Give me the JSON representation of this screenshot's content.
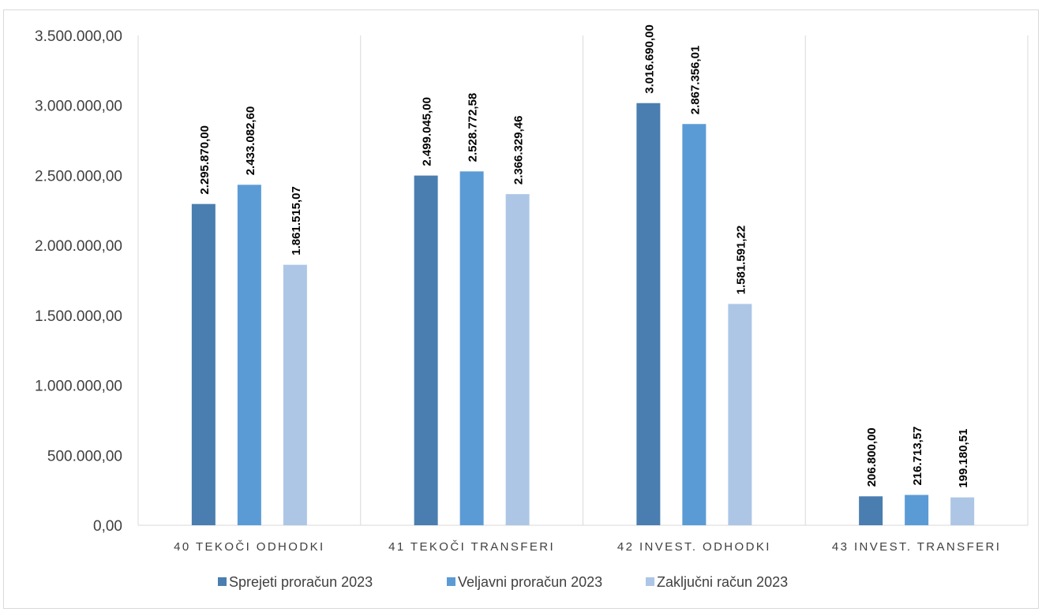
{
  "chart_data": {
    "type": "bar",
    "categories": [
      "40 TEKOČI ODHODKI",
      "41 TEKOČI TRANSFERI",
      "42 INVEST. ODHODKI",
      "43 INVEST. TRANSFERI"
    ],
    "series": [
      {
        "name": "Sprejeti proračun 2023",
        "color": "#4a7eb0",
        "values": [
          2295870.0,
          2499045.0,
          3016690.0,
          206800.0
        ],
        "labels": [
          "2.295.870,00",
          "2.499.045,00",
          "3.016.690,00",
          "206.800,00"
        ]
      },
      {
        "name": "Veljavni proračun 2023",
        "color": "#5b9bd5",
        "values": [
          2433082.6,
          2528772.58,
          2867356.01,
          216713.57
        ],
        "labels": [
          "2.433.082,60",
          "2.528.772,58",
          "2.867.356,01",
          "216.713,57"
        ]
      },
      {
        "name": "Zaključni račun 2023",
        "color": "#adc6e6",
        "values": [
          1861515.07,
          2366329.46,
          1581591.22,
          199180.51
        ],
        "labels": [
          "1.861.515,07",
          "2.366.329,46",
          "1.581.591,22",
          "199.180,51"
        ]
      }
    ],
    "yticks": [
      "0,00",
      "500.000,00",
      "1.000.000,00",
      "1.500.000,00",
      "2.000.000,00",
      "2.500.000,00",
      "3.000.000,00",
      "3.500.000,00"
    ],
    "ylim": [
      0,
      3500000
    ],
    "grid": false,
    "category_separators": true,
    "legend": "bottom",
    "title": "",
    "xlabel": "",
    "ylabel": ""
  }
}
